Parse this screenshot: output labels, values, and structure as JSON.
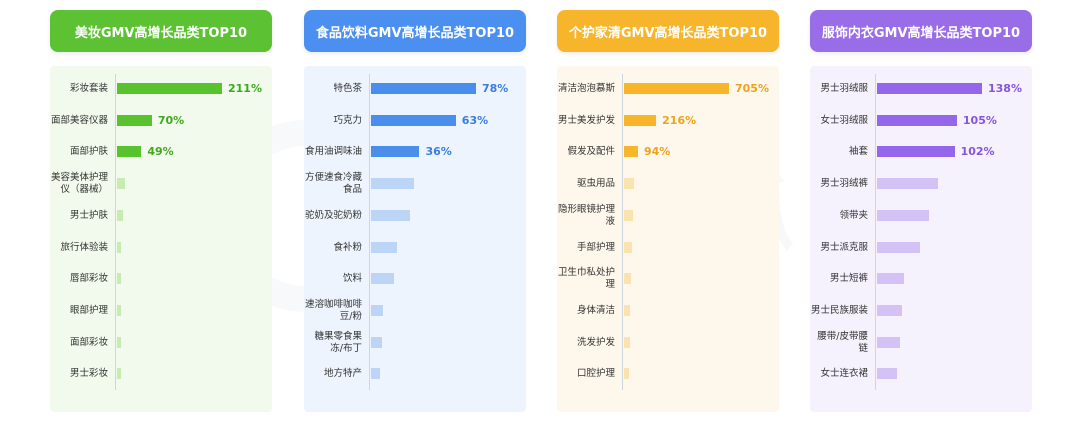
{
  "chart_data": [
    {
      "type": "bar",
      "title": "美妆GMV高增长品类TOP10",
      "categories": [
        "彩妆套装",
        "面部美容仪器",
        "面部护肤",
        "美容美体护理仪（器械）",
        "男士护肤",
        "旅行体验装",
        "唇部彩妆",
        "眼部护理",
        "面部彩妆",
        "男士彩妆"
      ],
      "values": [
        211,
        70,
        49,
        16,
        12,
        8,
        7,
        5,
        5,
        4
      ],
      "labels": [
        "211%",
        "70%",
        "49%",
        "",
        "",
        "",
        "",
        "",
        "",
        ""
      ],
      "colors": {
        "header": "#5cc234",
        "strong": "#58c22f",
        "light": "#c6ecb2",
        "value_text": "#3fa81c",
        "panel_bg": "#f1faec"
      }
    },
    {
      "type": "bar",
      "title": "食品饮料GMV高增长品类TOP10",
      "categories": [
        "特色茶",
        "巧克力",
        "食用油调味油",
        "方便速食冷藏食品",
        "驼奶及驼奶粉",
        "食补粉",
        "饮料",
        "速溶咖啡咖啡豆/粉",
        "糖果零食果冻/布丁",
        "地方特产"
      ],
      "values": [
        78,
        63,
        36,
        32,
        29,
        19,
        17,
        9,
        8,
        7
      ],
      "labels": [
        "78%",
        "63%",
        "36%",
        "",
        "",
        "",
        "",
        "",
        "",
        ""
      ],
      "colors": {
        "header": "#4b8ff0",
        "strong": "#4a8eec",
        "light": "#bcd4f6",
        "value_text": "#3a7de0",
        "panel_bg": "#eef4fd"
      }
    },
    {
      "type": "bar",
      "title": "个护家清GMV高增长品类TOP10",
      "categories": [
        "清洁泡泡慕斯",
        "男士美发护发",
        "假发及配件",
        "驱虫用品",
        "隐形眼镜护理液",
        "手部护理",
        "卫生巾私处护理",
        "身体清洁",
        "洗发护发",
        "口腔护理"
      ],
      "values": [
        705,
        216,
        94,
        70,
        60,
        52,
        44,
        40,
        37,
        34
      ],
      "labels": [
        "705%",
        "216%",
        "94%",
        "",
        "",
        "",
        "",
        "",
        "",
        ""
      ],
      "colors": {
        "header": "#f7b52c",
        "strong": "#f7b52a",
        "light": "#fbe3b0",
        "value_text": "#f0a21a",
        "panel_bg": "#fef8ec"
      }
    },
    {
      "type": "bar",
      "title": "服饰内衣GMV高增长品类TOP10",
      "categories": [
        "男士羽绒服",
        "女士羽绒服",
        "袖套",
        "男士羽绒裤",
        "领带夹",
        "男士派克服",
        "男士短裤",
        "男士民族服装",
        "腰带/皮带腰链",
        "女士连衣裙"
      ],
      "values": [
        138,
        105,
        102,
        80,
        68,
        56,
        36,
        33,
        30,
        26
      ],
      "labels": [
        "138%",
        "105%",
        "102%",
        "",
        "",
        "",
        "",
        "",
        "",
        ""
      ],
      "colors": {
        "header": "#9a6de8",
        "strong": "#9466ea",
        "light": "#d4c2f6",
        "value_text": "#8555dc",
        "panel_bg": "#f5f1fd"
      }
    }
  ]
}
